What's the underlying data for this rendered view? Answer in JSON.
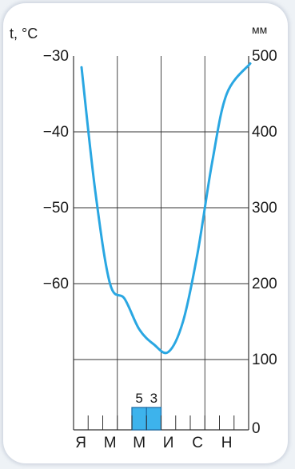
{
  "chart_data": {
    "type": "climatogram",
    "left_axis_label": "t, °C",
    "right_axis_label": "мм",
    "left_ticks": [
      "−30",
      "−40",
      "−50",
      "−60"
    ],
    "left_tick_values": [
      -30,
      -40,
      -50,
      -60
    ],
    "right_ticks": [
      "500",
      "400",
      "300",
      "200",
      "100",
      "0"
    ],
    "right_tick_values": [
      500,
      400,
      300,
      200,
      100,
      0
    ],
    "temp_range": [
      -70,
      -30
    ],
    "precip_range": [
      0,
      500
    ],
    "month_labels": [
      "Я",
      "М",
      "М",
      "И",
      "С",
      "Н"
    ],
    "temperature": {
      "months": [
        1,
        2,
        3,
        4,
        5,
        6,
        7,
        8,
        9,
        10,
        11,
        12
      ],
      "values": [
        -31.5,
        -48,
        -60,
        -62,
        -66,
        -68,
        -69,
        -65,
        -56,
        -44,
        -35,
        -31
      ]
    },
    "precipitation": {
      "months": [
        5,
        6
      ],
      "values": [
        5,
        3
      ],
      "labels": [
        "5",
        "3"
      ]
    },
    "colors": {
      "line": "#2aa7e2",
      "bar_fill": "#3db3ec",
      "bar_stroke": "#1f6fa8",
      "grid": "#333333"
    }
  }
}
